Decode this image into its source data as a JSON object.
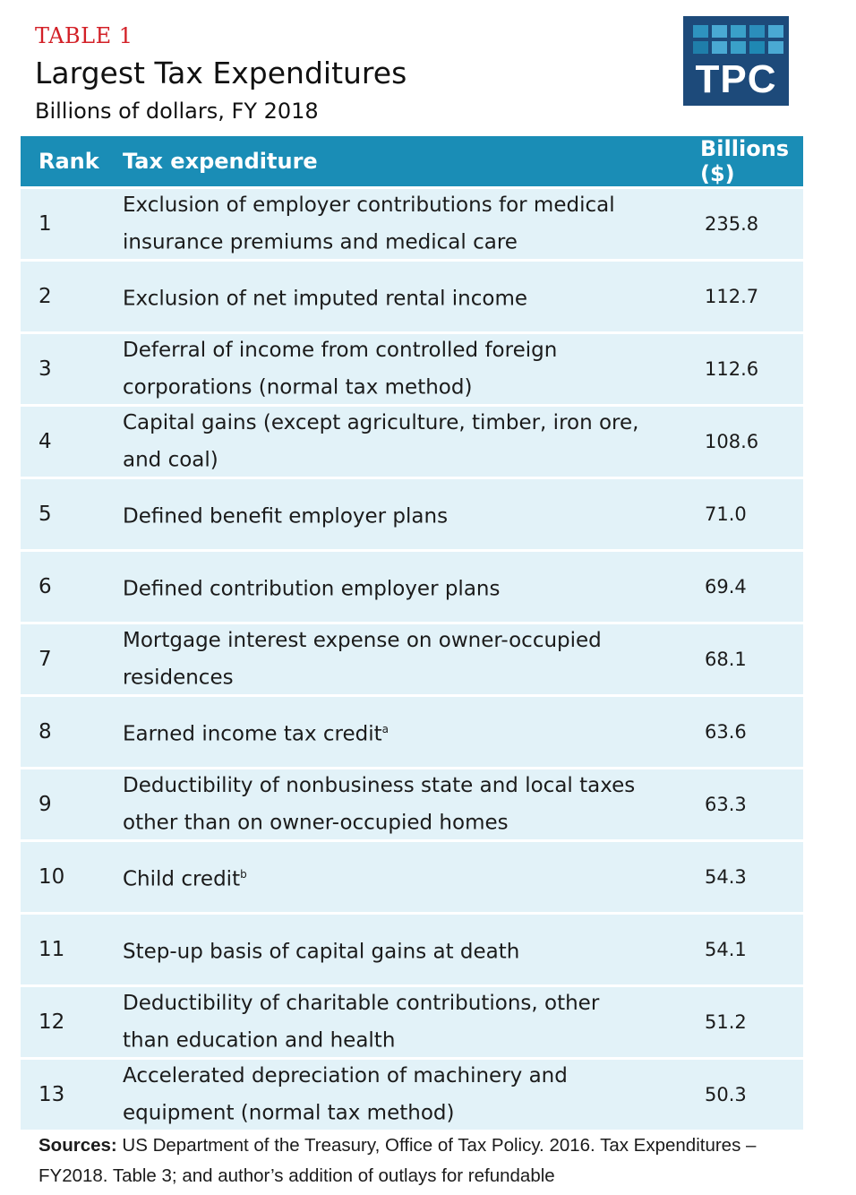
{
  "header": {
    "label": "TABLE 1",
    "title": "Largest Tax Expenditures",
    "subtitle": "Billions of dollars, FY 2018",
    "logo_text": "TPC"
  },
  "colors": {
    "label": "#d32027",
    "header_bar": "#1a8db6",
    "row_bg": "#e2f2f8",
    "logo_bg": "#1d4a7a"
  },
  "chart_data": {
    "type": "table",
    "columns": [
      "Rank",
      "Tax expenditure",
      "Billions ($)"
    ],
    "rows": [
      {
        "rank": "1",
        "item": "Exclusion of employer contributions for medical insurance premiums and medical care",
        "sup": "",
        "value": "235.8"
      },
      {
        "rank": "2",
        "item": "Exclusion of net imputed rental income",
        "sup": "",
        "value": "112.7"
      },
      {
        "rank": "3",
        "item": "Deferral of income from controlled foreign corporations (normal tax method)",
        "sup": "",
        "value": "112.6"
      },
      {
        "rank": "4",
        "item": "Capital gains (except agriculture, timber, iron ore, and coal)",
        "sup": "",
        "value": "108.6"
      },
      {
        "rank": "5",
        "item": "Defined benefit employer plans",
        "sup": "",
        "value": "71.0"
      },
      {
        "rank": "6",
        "item": "Defined contribution employer plans",
        "sup": "",
        "value": "69.4"
      },
      {
        "rank": "7",
        "item": "Mortgage interest expense on owner-occupied residences",
        "sup": "",
        "value": "68.1"
      },
      {
        "rank": "8",
        "item": "Earned income tax credit",
        "sup": "a",
        "value": "63.6"
      },
      {
        "rank": "9",
        "item": "Deductibility of nonbusiness state and local taxes other than on owner-occupied homes",
        "sup": "",
        "value": "63.3"
      },
      {
        "rank": "10",
        "item": "Child credit",
        "sup": "b",
        "value": "54.3"
      },
      {
        "rank": "11",
        "item": "Step-up basis of capital gains at death",
        "sup": "",
        "value": "54.1"
      },
      {
        "rank": "12",
        "item": "Deductibility of charitable contributions, other than education and health",
        "sup": "",
        "value": "51.2"
      },
      {
        "rank": "13",
        "item": "Accelerated depreciation of machinery and equipment (normal tax method)",
        "sup": "",
        "value": "50.3"
      }
    ]
  },
  "sources": {
    "label": "Sources:",
    "text": " US Department of the Treasury, Office of Tax Policy. 2016. Tax Expenditures – FY2018. Table 3; and author’s addition of outlays for refundable"
  }
}
